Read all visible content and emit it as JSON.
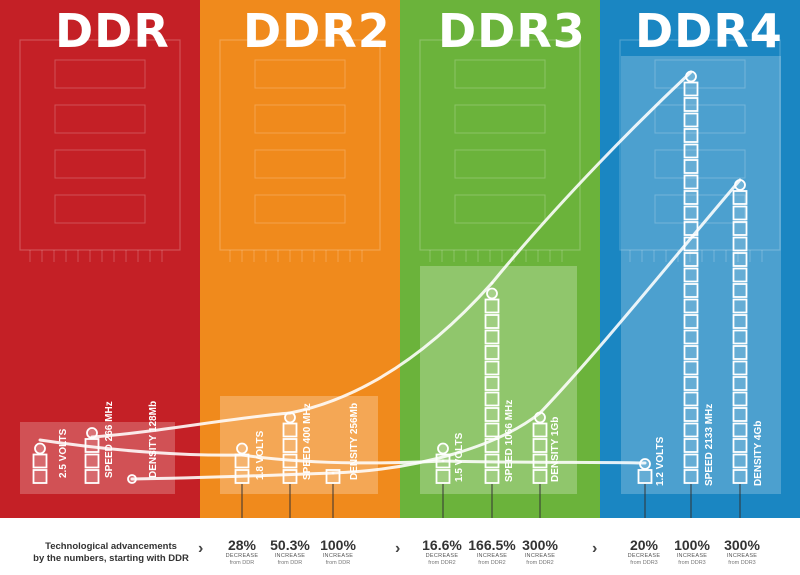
{
  "generations": [
    {
      "title": "DDR",
      "color": "#c42026",
      "metrics": [
        {
          "label": "2.5 VOLTS"
        },
        {
          "label": "SPEED 266 MHz"
        },
        {
          "label": "DENSITY 128Mb"
        }
      ]
    },
    {
      "title": "DDR2",
      "color": "#f08a1c",
      "metrics": [
        {
          "label": "1.8 VOLTS"
        },
        {
          "label": "SPEED 400 MHz"
        },
        {
          "label": "DENSITY  256Mb"
        }
      ]
    },
    {
      "title": "DDR3",
      "color": "#6bb33b",
      "metrics": [
        {
          "label": "1.5 VOLTS"
        },
        {
          "label": "SPEED 1066 MHz"
        },
        {
          "label": "DENSITY  1Gb"
        }
      ]
    },
    {
      "title": "DDR4",
      "color": "#1a86c2",
      "metrics": [
        {
          "label": "1.2 VOLTS"
        },
        {
          "label": "SPEED 2133 MHz"
        },
        {
          "label": "DENSITY  4Gb"
        }
      ]
    }
  ],
  "footer": {
    "line1": "Technological advancements",
    "line2": "by the numbers, starting with DDR",
    "arrow": "›",
    "stats": [
      {
        "pct": "28%",
        "label": "DECREASE",
        "sub": "from DDR"
      },
      {
        "pct": "50.3%",
        "label": "INCREASE",
        "sub": "from DDR"
      },
      {
        "pct": "100%",
        "label": "INCREASE",
        "sub": "from DDR"
      },
      {
        "pct": "16.6%",
        "label": "DECREASE",
        "sub": "from DDR2"
      },
      {
        "pct": "166.5%",
        "label": "INCREASE",
        "sub": "from DDR2"
      },
      {
        "pct": "300%",
        "label": "INCREASE",
        "sub": "from DDR2"
      },
      {
        "pct": "20%",
        "label": "DECREASE",
        "sub": "from DDR3"
      },
      {
        "pct": "100%",
        "label": "INCREASE",
        "sub": "from DDR3"
      },
      {
        "pct": "300%",
        "label": "INCREASE",
        "sub": "from DDR3"
      }
    ]
  }
}
